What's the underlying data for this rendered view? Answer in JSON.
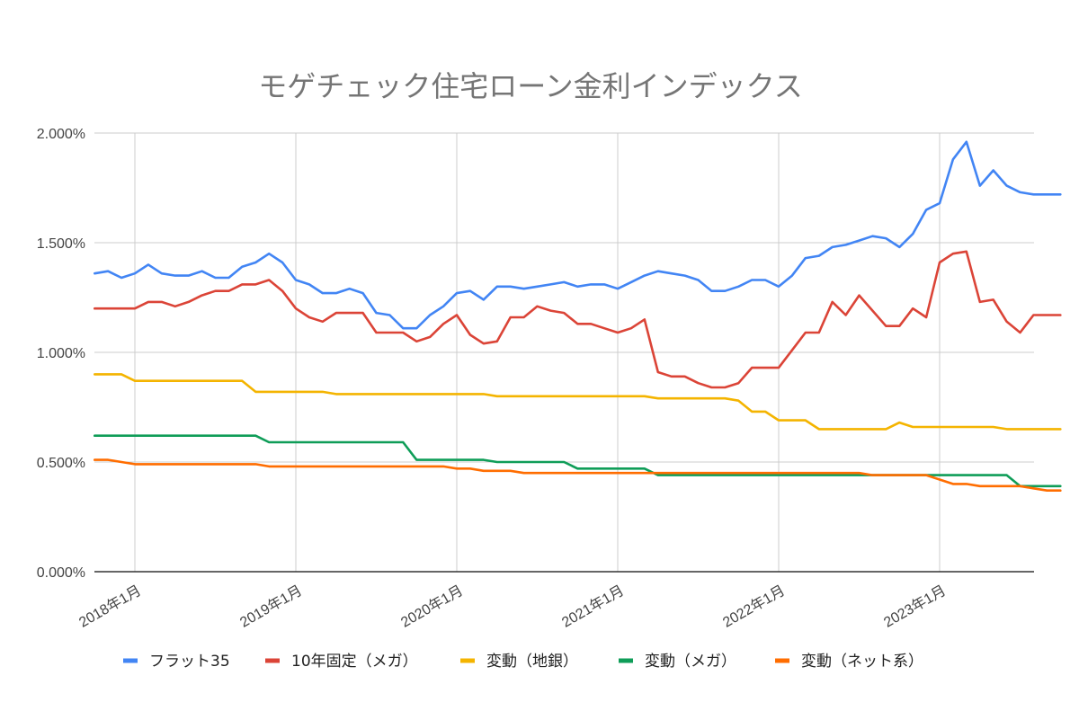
{
  "chart_data": {
    "type": "line",
    "title": "モゲチェック住宅ローン金利インデックス",
    "xlabel": "",
    "ylabel": "",
    "ylim": [
      0,
      2.0
    ],
    "y_ticks": [
      "0.000%",
      "0.500%",
      "1.000%",
      "1.500%",
      "2.000%"
    ],
    "x_ticks": [
      "2018年1月",
      "2019年1月",
      "2020年1月",
      "2021年1月",
      "2022年1月",
      "2023年1月"
    ],
    "grid": true,
    "legend_position": "bottom",
    "x_months": [
      "2017-10",
      "2017-11",
      "2017-12",
      "2018-01",
      "2018-02",
      "2018-03",
      "2018-04",
      "2018-05",
      "2018-06",
      "2018-07",
      "2018-08",
      "2018-09",
      "2018-10",
      "2018-11",
      "2018-12",
      "2019-01",
      "2019-02",
      "2019-03",
      "2019-04",
      "2019-05",
      "2019-06",
      "2019-07",
      "2019-08",
      "2019-09",
      "2019-10",
      "2019-11",
      "2019-12",
      "2020-01",
      "2020-02",
      "2020-03",
      "2020-04",
      "2020-05",
      "2020-06",
      "2020-07",
      "2020-08",
      "2020-09",
      "2020-10",
      "2020-11",
      "2020-12",
      "2021-01",
      "2021-02",
      "2021-03",
      "2021-04",
      "2021-05",
      "2021-06",
      "2021-07",
      "2021-08",
      "2021-09",
      "2021-10",
      "2021-11",
      "2021-12",
      "2022-01",
      "2022-02",
      "2022-03",
      "2022-04",
      "2022-05",
      "2022-06",
      "2022-07",
      "2022-08",
      "2022-09",
      "2022-10",
      "2022-11",
      "2022-12",
      "2023-01",
      "2023-02",
      "2023-03",
      "2023-04",
      "2023-05",
      "2023-06",
      "2023-07",
      "2023-08",
      "2023-09",
      "2023-10"
    ],
    "series": [
      {
        "name": "フラット35",
        "color": "#4285F4",
        "values": [
          1.36,
          1.37,
          1.34,
          1.36,
          1.4,
          1.36,
          1.35,
          1.35,
          1.37,
          1.34,
          1.34,
          1.39,
          1.41,
          1.45,
          1.41,
          1.33,
          1.31,
          1.27,
          1.27,
          1.29,
          1.27,
          1.18,
          1.17,
          1.11,
          1.11,
          1.17,
          1.21,
          1.27,
          1.28,
          1.24,
          1.3,
          1.3,
          1.29,
          1.3,
          1.31,
          1.32,
          1.3,
          1.31,
          1.31,
          1.29,
          1.32,
          1.35,
          1.37,
          1.36,
          1.35,
          1.33,
          1.28,
          1.28,
          1.3,
          1.33,
          1.33,
          1.3,
          1.35,
          1.43,
          1.44,
          1.48,
          1.49,
          1.51,
          1.53,
          1.52,
          1.48,
          1.54,
          1.65,
          1.68,
          1.88,
          1.96,
          1.76,
          1.83,
          1.76,
          1.73,
          1.72,
          1.72,
          1.72
        ]
      },
      {
        "name": "10年固定（メガ）",
        "color": "#DB4437",
        "values": [
          1.2,
          1.2,
          1.2,
          1.2,
          1.23,
          1.23,
          1.21,
          1.23,
          1.26,
          1.28,
          1.28,
          1.31,
          1.31,
          1.33,
          1.28,
          1.2,
          1.16,
          1.14,
          1.18,
          1.18,
          1.18,
          1.09,
          1.09,
          1.09,
          1.05,
          1.07,
          1.13,
          1.17,
          1.08,
          1.04,
          1.05,
          1.16,
          1.16,
          1.21,
          1.19,
          1.18,
          1.13,
          1.13,
          1.11,
          1.09,
          1.11,
          1.15,
          0.91,
          0.89,
          0.89,
          0.86,
          0.84,
          0.84,
          0.86,
          0.93,
          0.93,
          0.93,
          1.01,
          1.09,
          1.09,
          1.23,
          1.17,
          1.26,
          1.19,
          1.12,
          1.12,
          1.2,
          1.16,
          1.41,
          1.45,
          1.46,
          1.23,
          1.24,
          1.14,
          1.09,
          1.17,
          1.17,
          1.17
        ]
      },
      {
        "name": "変動（地銀）",
        "color": "#F4B400",
        "values": [
          0.9,
          0.9,
          0.9,
          0.87,
          0.87,
          0.87,
          0.87,
          0.87,
          0.87,
          0.87,
          0.87,
          0.87,
          0.82,
          0.82,
          0.82,
          0.82,
          0.82,
          0.82,
          0.81,
          0.81,
          0.81,
          0.81,
          0.81,
          0.81,
          0.81,
          0.81,
          0.81,
          0.81,
          0.81,
          0.81,
          0.8,
          0.8,
          0.8,
          0.8,
          0.8,
          0.8,
          0.8,
          0.8,
          0.8,
          0.8,
          0.8,
          0.8,
          0.79,
          0.79,
          0.79,
          0.79,
          0.79,
          0.79,
          0.78,
          0.73,
          0.73,
          0.69,
          0.69,
          0.69,
          0.65,
          0.65,
          0.65,
          0.65,
          0.65,
          0.65,
          0.68,
          0.66,
          0.66,
          0.66,
          0.66,
          0.66,
          0.66,
          0.66,
          0.65,
          0.65,
          0.65,
          0.65,
          0.65
        ]
      },
      {
        "name": "変動（メガ）",
        "color": "#0F9D58",
        "values": [
          0.62,
          0.62,
          0.62,
          0.62,
          0.62,
          0.62,
          0.62,
          0.62,
          0.62,
          0.62,
          0.62,
          0.62,
          0.62,
          0.59,
          0.59,
          0.59,
          0.59,
          0.59,
          0.59,
          0.59,
          0.59,
          0.59,
          0.59,
          0.59,
          0.51,
          0.51,
          0.51,
          0.51,
          0.51,
          0.51,
          0.5,
          0.5,
          0.5,
          0.5,
          0.5,
          0.5,
          0.47,
          0.47,
          0.47,
          0.47,
          0.47,
          0.47,
          0.44,
          0.44,
          0.44,
          0.44,
          0.44,
          0.44,
          0.44,
          0.44,
          0.44,
          0.44,
          0.44,
          0.44,
          0.44,
          0.44,
          0.44,
          0.44,
          0.44,
          0.44,
          0.44,
          0.44,
          0.44,
          0.44,
          0.44,
          0.44,
          0.44,
          0.44,
          0.44,
          0.39,
          0.39,
          0.39,
          0.39
        ]
      },
      {
        "name": "変動（ネット系）",
        "color": "#FF6D00",
        "values": [
          0.51,
          0.51,
          0.5,
          0.49,
          0.49,
          0.49,
          0.49,
          0.49,
          0.49,
          0.49,
          0.49,
          0.49,
          0.49,
          0.48,
          0.48,
          0.48,
          0.48,
          0.48,
          0.48,
          0.48,
          0.48,
          0.48,
          0.48,
          0.48,
          0.48,
          0.48,
          0.48,
          0.47,
          0.47,
          0.46,
          0.46,
          0.46,
          0.45,
          0.45,
          0.45,
          0.45,
          0.45,
          0.45,
          0.45,
          0.45,
          0.45,
          0.45,
          0.45,
          0.45,
          0.45,
          0.45,
          0.45,
          0.45,
          0.45,
          0.45,
          0.45,
          0.45,
          0.45,
          0.45,
          0.45,
          0.45,
          0.45,
          0.45,
          0.44,
          0.44,
          0.44,
          0.44,
          0.44,
          0.42,
          0.4,
          0.4,
          0.39,
          0.39,
          0.39,
          0.39,
          0.38,
          0.37,
          0.37
        ]
      }
    ]
  }
}
